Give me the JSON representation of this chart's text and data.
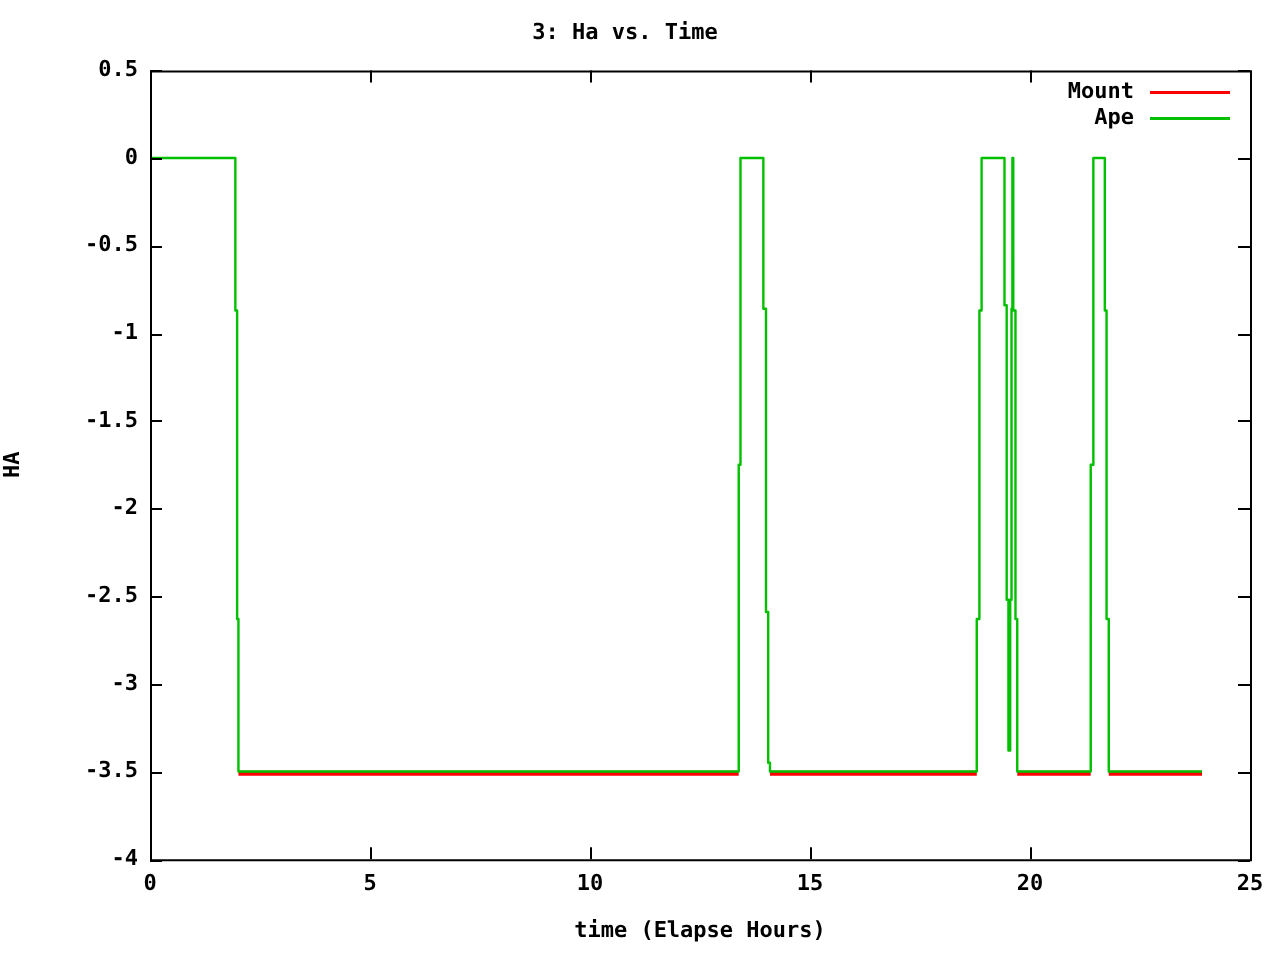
{
  "chart_data": {
    "type": "step",
    "title": "3: Ha vs. Time",
    "xlabel": "time (Elapse Hours)",
    "ylabel": "HA",
    "xlim": [
      0,
      25
    ],
    "xticks": [
      0,
      5,
      10,
      15,
      20,
      25
    ],
    "ylim": [
      -4,
      0.5
    ],
    "yticks": [
      0.5,
      0,
      -0.5,
      -1,
      -1.5,
      -2,
      -2.5,
      -3,
      -3.5,
      -4
    ],
    "grid": false,
    "legend": "top right",
    "marker": "none",
    "line_style": "solid",
    "series": [
      {
        "name": "Mount",
        "color": "#ff0000",
        "x": [
          2.01,
          13.38,
          13.7,
          14.09,
          18.79,
          19.2,
          19.71,
          21.38,
          21.6,
          21.79,
          23.91
        ],
        "values": [
          -3.51,
          -3.51,
          null,
          -3.51,
          -3.51,
          null,
          -3.51,
          -3.51,
          null,
          -3.51,
          -3.51
        ]
      },
      {
        "name": "Ape",
        "color": "#00c000",
        "x": [
          0,
          1.94,
          1.98,
          2.01,
          13.38,
          13.42,
          13.94,
          14.0,
          14.05,
          14.09,
          18.79,
          18.85,
          18.9,
          19.42,
          19.47,
          19.51,
          19.55,
          19.58,
          19.6,
          19.62,
          19.67,
          19.71,
          21.38,
          21.44,
          21.7,
          21.74,
          21.79,
          23.91
        ],
        "values": [
          0,
          -0.87,
          -2.63,
          -3.5,
          -1.75,
          0,
          -0.86,
          -2.59,
          -3.45,
          -3.5,
          -2.63,
          -0.87,
          0,
          -0.84,
          -2.52,
          -3.38,
          -2.52,
          -0.86,
          0,
          -0.87,
          -2.63,
          -3.5,
          -1.75,
          0,
          -0.87,
          -2.63,
          -3.5,
          -3.5
        ]
      }
    ]
  }
}
